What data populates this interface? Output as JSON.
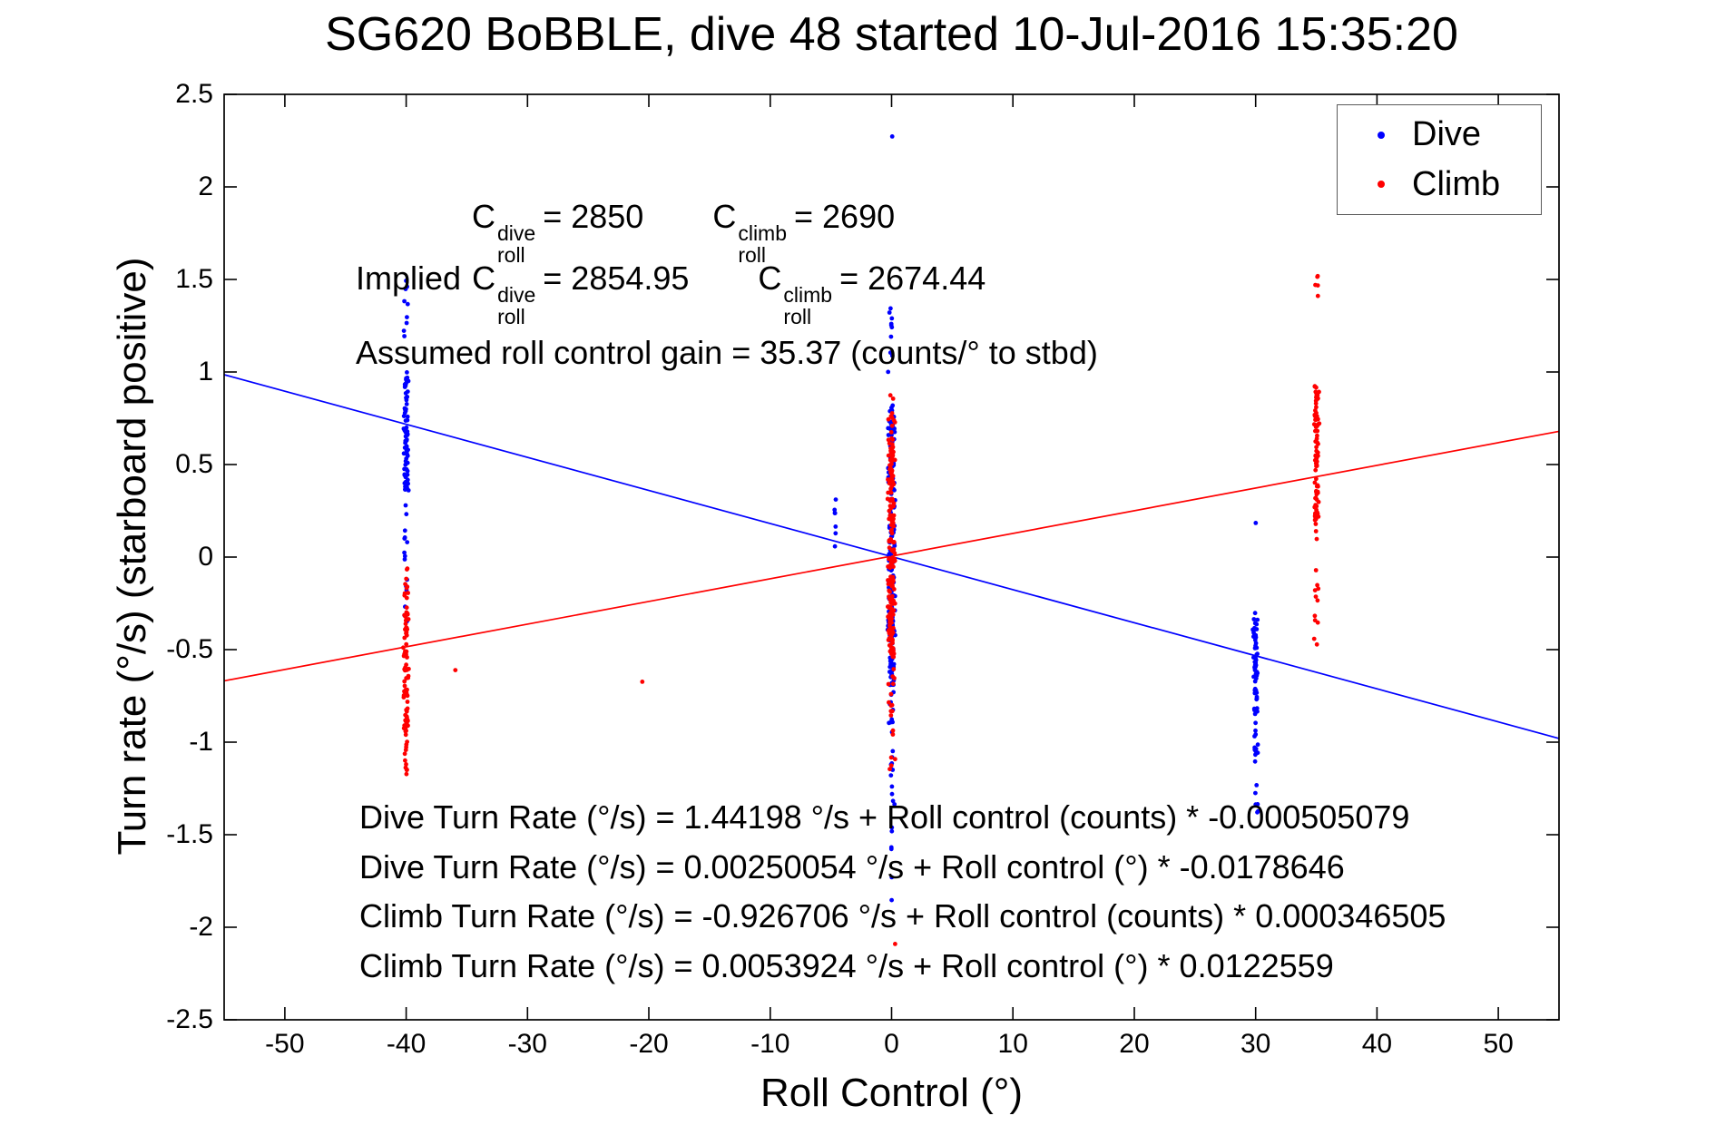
{
  "chart_data": {
    "type": "scatter",
    "title": "SG620 BoBBLE, dive 48 started 10-Jul-2016 15:35:20",
    "xlabel": "Roll Control (°)",
    "ylabel": "Turn rate (°/s) (starboard positive)",
    "xlim": [
      -55,
      55
    ],
    "ylim": [
      -2.5,
      2.5
    ],
    "grid": false,
    "legend_position": "top-right",
    "xticks": [
      {
        "v": -50,
        "label": "-50"
      },
      {
        "v": -40,
        "label": "-40"
      },
      {
        "v": -30,
        "label": "-30"
      },
      {
        "v": -20,
        "label": "-20"
      },
      {
        "v": -10,
        "label": "-10"
      },
      {
        "v": 0,
        "label": "0"
      },
      {
        "v": 10,
        "label": "10"
      },
      {
        "v": 20,
        "label": "20"
      },
      {
        "v": 30,
        "label": "30"
      },
      {
        "v": 40,
        "label": "40"
      },
      {
        "v": 50,
        "label": "50"
      }
    ],
    "yticks": [
      {
        "v": -2.5,
        "label": "-2.5"
      },
      {
        "v": -2,
        "label": "-2"
      },
      {
        "v": -1.5,
        "label": "-1.5"
      },
      {
        "v": -1,
        "label": "-1"
      },
      {
        "v": -0.5,
        "label": "-0.5"
      },
      {
        "v": 0,
        "label": "0"
      },
      {
        "v": 0.5,
        "label": "0.5"
      },
      {
        "v": 1,
        "label": "1"
      },
      {
        "v": 1.5,
        "label": "1.5"
      },
      {
        "v": 2,
        "label": "2"
      },
      {
        "v": 2.5,
        "label": "2.5"
      }
    ],
    "series": [
      {
        "name": "Dive",
        "color": "#0000ff",
        "segments": [
          [
            -40,
            0.22,
            1.15,
            1.55,
            9
          ],
          [
            -40,
            0.22,
            0.35,
            1.0,
            75
          ],
          [
            -40,
            0.22,
            -0.35,
            0.35,
            18
          ],
          [
            -4.6,
            0.15,
            0.05,
            0.32,
            7
          ],
          [
            0,
            0.25,
            2.27,
            2.29,
            1
          ],
          [
            0,
            0.3,
            1.0,
            1.4,
            10
          ],
          [
            0,
            0.35,
            -0.7,
            0.85,
            190
          ],
          [
            0,
            0.3,
            -1.35,
            -0.7,
            22
          ],
          [
            0,
            0.2,
            -1.95,
            -1.35,
            6
          ],
          [
            30,
            0.2,
            0.18,
            0.22,
            1
          ],
          [
            30,
            0.25,
            -0.85,
            -0.3,
            55
          ],
          [
            30,
            0.25,
            -1.4,
            -0.85,
            18
          ]
        ]
      },
      {
        "name": "Climb",
        "color": "#ff0000",
        "segments": [
          [
            -40,
            0.22,
            -0.3,
            -0.05,
            12
          ],
          [
            -40,
            0.25,
            -0.95,
            -0.3,
            70
          ],
          [
            -40,
            0.22,
            -1.18,
            -0.95,
            12
          ],
          [
            -36,
            0.1,
            -0.63,
            -0.61,
            1
          ],
          [
            -20.5,
            0.1,
            -0.69,
            -0.67,
            1
          ],
          [
            0,
            0.35,
            -0.55,
            0.65,
            190
          ],
          [
            0,
            0.3,
            0.65,
            0.88,
            10
          ],
          [
            0,
            0.3,
            -1.15,
            -0.55,
            18
          ],
          [
            0.3,
            0.1,
            -2.12,
            -2.08,
            1
          ],
          [
            35,
            0.2,
            1.38,
            1.52,
            5
          ],
          [
            35,
            0.25,
            0.2,
            0.95,
            85
          ],
          [
            35,
            0.25,
            -0.48,
            0.2,
            14
          ]
        ]
      }
    ],
    "fit_lines": [
      {
        "series": "Dive",
        "color": "#0000ff",
        "intercept": 0.00250054,
        "slope": -0.0178646
      },
      {
        "series": "Climb",
        "color": "#ff0000",
        "intercept": 0.0053924,
        "slope": 0.0122559
      }
    ]
  },
  "annotations": {
    "coeff_rows": [
      {
        "prefix": "",
        "groups": [
          {
            "base": "C",
            "sup": "dive",
            "sub": "roll",
            "eq": "= 2850"
          },
          {
            "base": "C",
            "sup": "climb",
            "sub": "roll",
            "eq": "= 2690"
          }
        ]
      },
      {
        "prefix": "Implied",
        "groups": [
          {
            "base": "C",
            "sup": "dive",
            "sub": "roll",
            "eq": "= 2854.95"
          },
          {
            "base": "C",
            "sup": "climb",
            "sub": "roll",
            "eq": "= 2674.44"
          }
        ]
      }
    ],
    "gain_line": "Assumed roll control gain = 35.37 (counts/° to stbd)",
    "equations": [
      "Dive Turn Rate (°/s) = 1.44198 °/s + Roll control (counts) * -0.000505079",
      "Dive Turn Rate (°/s) = 0.00250054 °/s + Roll control (°) * -0.0178646",
      "Climb Turn Rate (°/s) = -0.926706 °/s + Roll control (counts) * 0.000346505",
      "Climb Turn Rate (°/s) = 0.0053924 °/s + Roll control (°) * 0.0122559"
    ]
  },
  "legend": {
    "items": [
      {
        "label": "Dive"
      },
      {
        "label": "Climb"
      }
    ]
  }
}
